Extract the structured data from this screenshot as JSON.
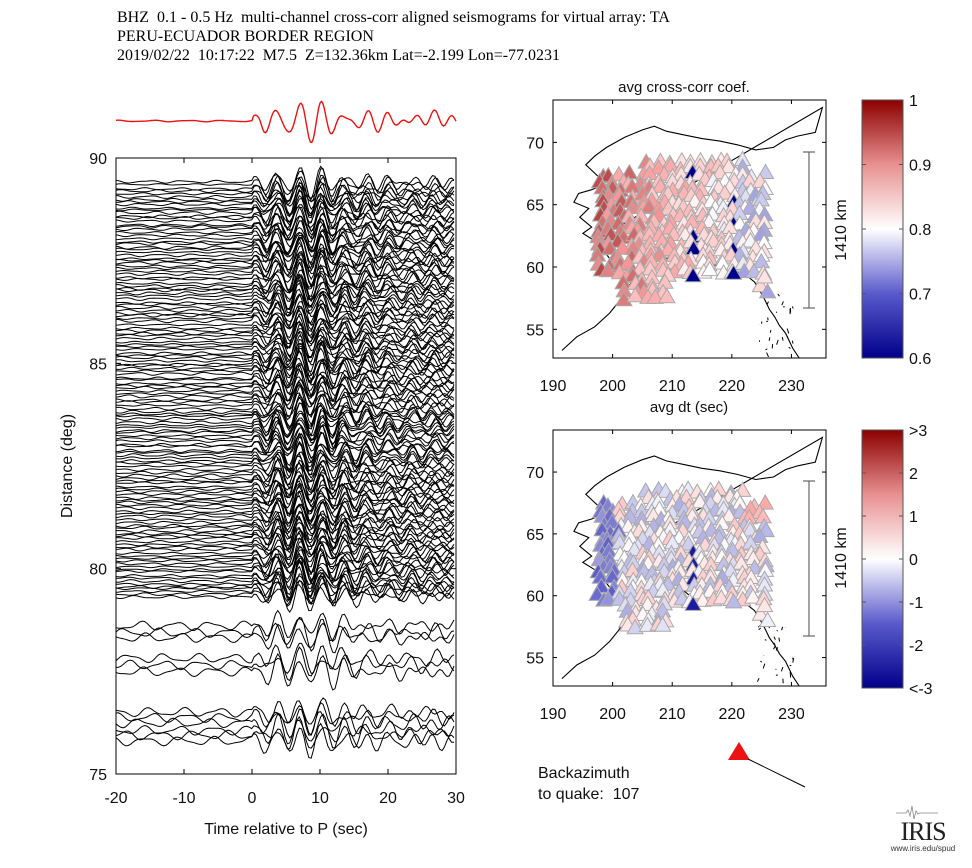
{
  "header": {
    "line1": "BHZ  0.1 - 0.5 Hz  multi-channel cross-corr aligned seismograms for virtual array: TA",
    "line2": "PERU-ECUADOR BORDER REGION",
    "line3": "2019/02/22  10:17:22  M7.5  Z=132.36km Lat=-2.199 Lon=-77.0231"
  },
  "colors": {
    "stack": "#ee1111",
    "trace": "#000000",
    "station_outline": "#aaaaaa",
    "cmap_low": "#00008b",
    "cmap_mid": "#ffffff",
    "cmap_high": "#8b0000"
  },
  "chart_data": [
    {
      "type": "line",
      "name": "record-section",
      "xlabel": "Time relative to P (sec)",
      "ylabel": "Distance (deg)",
      "xlim": [
        -20,
        30
      ],
      "ylim": [
        75,
        90
      ],
      "xticks": [
        "-20",
        "-10",
        "0",
        "10",
        "20",
        "30"
      ],
      "yticks": [
        "75",
        "80",
        "85",
        "90"
      ],
      "stack_trace": "red stacked waveform above panel",
      "trace_groups": [
        {
          "from": 79.3,
          "to": 89.4,
          "count": 150
        },
        {
          "from": 78.3,
          "to": 78.6,
          "count": 3
        },
        {
          "from": 77.5,
          "to": 77.8,
          "count": 3
        },
        {
          "from": 75.8,
          "to": 76.5,
          "count": 6
        }
      ],
      "p_arrival_peak_sec": 7
    },
    {
      "type": "scatter",
      "name": "avg-cross-corr-map",
      "title": "avg cross-corr coef.",
      "xlabel": "avg dt (sec)",
      "xticks": [
        "190",
        "200",
        "210",
        "220",
        "230"
      ],
      "yticks": [
        "55",
        "60",
        "65",
        "70"
      ],
      "xlim": [
        190,
        235.8
      ],
      "ylim": [
        52.7,
        73.4
      ],
      "scale_bar": "1410 km",
      "colorbar": {
        "min": 0.6,
        "max": 1,
        "ticks": [
          "1",
          "0.9",
          "0.8",
          "0.7",
          "0.6"
        ]
      }
    },
    {
      "type": "scatter",
      "name": "avg-dt-map",
      "xticks": [
        "190",
        "200",
        "210",
        "220",
        "230"
      ],
      "yticks": [
        "55",
        "60",
        "65",
        "70"
      ],
      "xlim": [
        190,
        235.8
      ],
      "ylim": [
        52.7,
        73.4
      ],
      "scale_bar": "1410 km",
      "colorbar": {
        "min": -3,
        "max": 3,
        "ticks": [
          ">3",
          "2",
          "1",
          "0",
          "-1",
          "-2",
          "<-3"
        ]
      }
    }
  ],
  "backazimuth": {
    "line1": "Backazimuth",
    "line2": "to quake:  107",
    "value_deg": 107
  },
  "logo": {
    "word": "IRIS",
    "url": "www.iris.edu/spud"
  }
}
